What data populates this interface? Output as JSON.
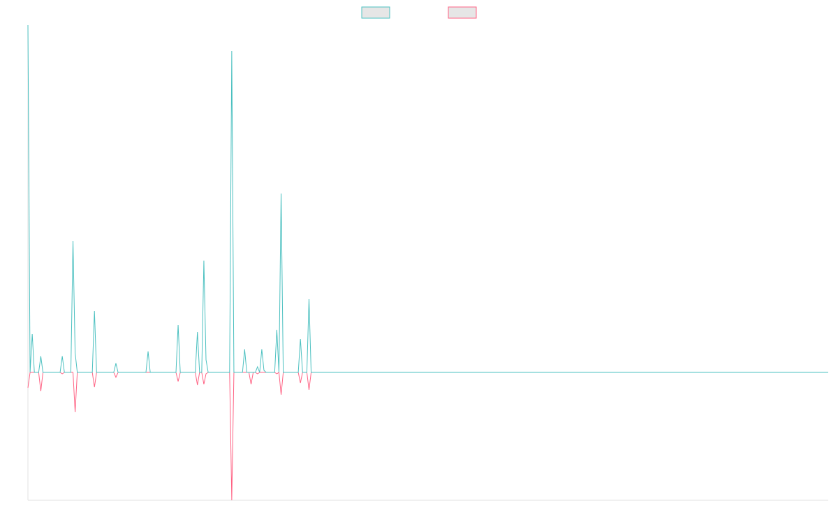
{
  "chart_data": {
    "type": "line",
    "legend": "top",
    "grid": false,
    "xlim": [
      0,
      373
    ],
    "ylim": [
      -183,
      497
    ],
    "x": [
      0,
      1,
      2,
      3,
      5,
      6,
      7,
      15,
      16,
      17,
      20,
      21,
      22,
      23,
      30,
      31,
      32,
      40,
      41,
      42,
      55,
      56,
      57,
      69,
      70,
      71,
      78,
      79,
      80,
      81,
      82,
      83,
      84,
      94,
      95,
      96,
      100,
      101,
      102,
      103,
      104,
      105,
      106,
      107,
      108,
      109,
      110,
      111,
      115,
      116,
      117,
      118,
      119,
      126,
      127,
      128,
      130,
      131,
      132,
      373
    ],
    "series": [
      {
        "color": "#4bc0c0",
        "values": [
          497,
          0,
          55,
          0,
          0,
          23,
          0,
          0,
          23,
          0,
          0,
          188,
          28,
          0,
          0,
          88,
          0,
          0,
          13,
          0,
          0,
          30,
          0,
          0,
          68,
          0,
          0,
          58,
          0,
          0,
          160,
          18,
          0,
          0,
          460,
          0,
          0,
          33,
          0,
          0,
          0,
          0,
          0,
          8,
          0,
          33,
          3,
          0,
          0,
          61,
          0,
          256,
          0,
          0,
          48,
          0,
          0,
          105,
          0,
          0
        ]
      },
      {
        "color": "#ff6384",
        "values": [
          -22,
          0,
          0,
          0,
          0,
          -27,
          0,
          0,
          -2,
          0,
          0,
          0,
          -57,
          0,
          0,
          -21,
          0,
          0,
          -7,
          0,
          0,
          0,
          0,
          0,
          -13,
          0,
          0,
          -18,
          0,
          0,
          -17,
          -2,
          0,
          0,
          -183,
          0,
          0,
          0,
          0,
          0,
          -17,
          0,
          0,
          -2,
          0,
          0,
          0,
          0,
          0,
          -2,
          0,
          -32,
          0,
          0,
          -15,
          0,
          0,
          -25,
          0,
          0
        ]
      }
    ]
  }
}
